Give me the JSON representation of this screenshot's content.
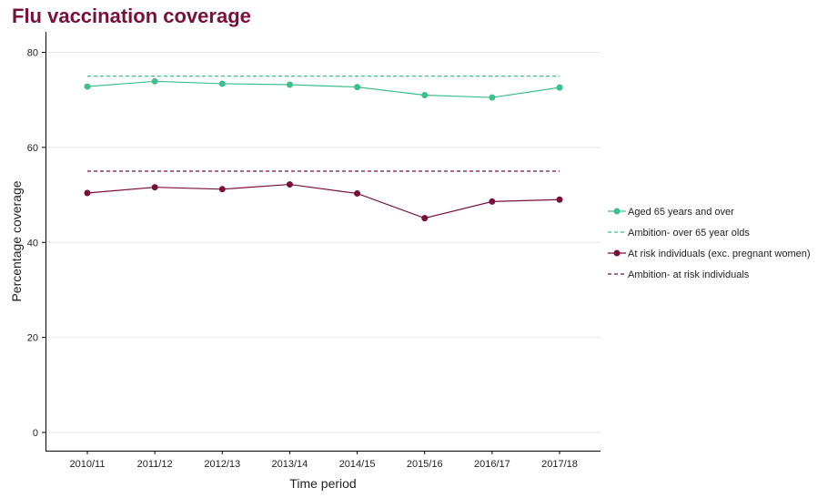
{
  "chart_data": {
    "type": "line",
    "title": "Flu vaccination coverage",
    "xlabel": "Time period",
    "ylabel": "Percentage coverage",
    "categories": [
      "2010/11",
      "2011/12",
      "2012/13",
      "2013/14",
      "2014/15",
      "2015/16",
      "2016/17",
      "2017/18"
    ],
    "ylim": [
      0,
      80
    ],
    "yticks": [
      0,
      20,
      40,
      60,
      80
    ],
    "grid": "horizontal",
    "legend_position": "right",
    "series": [
      {
        "name": "Aged 65 years and over",
        "color": "#3dbf8c",
        "style": "solid-markers",
        "values": [
          72.8,
          73.9,
          73.4,
          73.2,
          72.7,
          71.0,
          70.5,
          72.6
        ]
      },
      {
        "name": "Ambition- over 65 year olds",
        "color": "#3dbf8c",
        "style": "dashed",
        "values": [
          75,
          75,
          75,
          75,
          75,
          75,
          75,
          75
        ]
      },
      {
        "name": "At risk individuals (exc. pregnant women)",
        "color": "#7a0f3b",
        "style": "solid-markers",
        "values": [
          50.4,
          51.6,
          51.2,
          52.2,
          50.3,
          45.1,
          48.6,
          49.0
        ]
      },
      {
        "name": "Ambition- at risk individuals",
        "color": "#7a0f3b",
        "style": "dashed",
        "values": [
          55,
          55,
          55,
          55,
          55,
          55,
          55,
          55
        ]
      }
    ]
  }
}
